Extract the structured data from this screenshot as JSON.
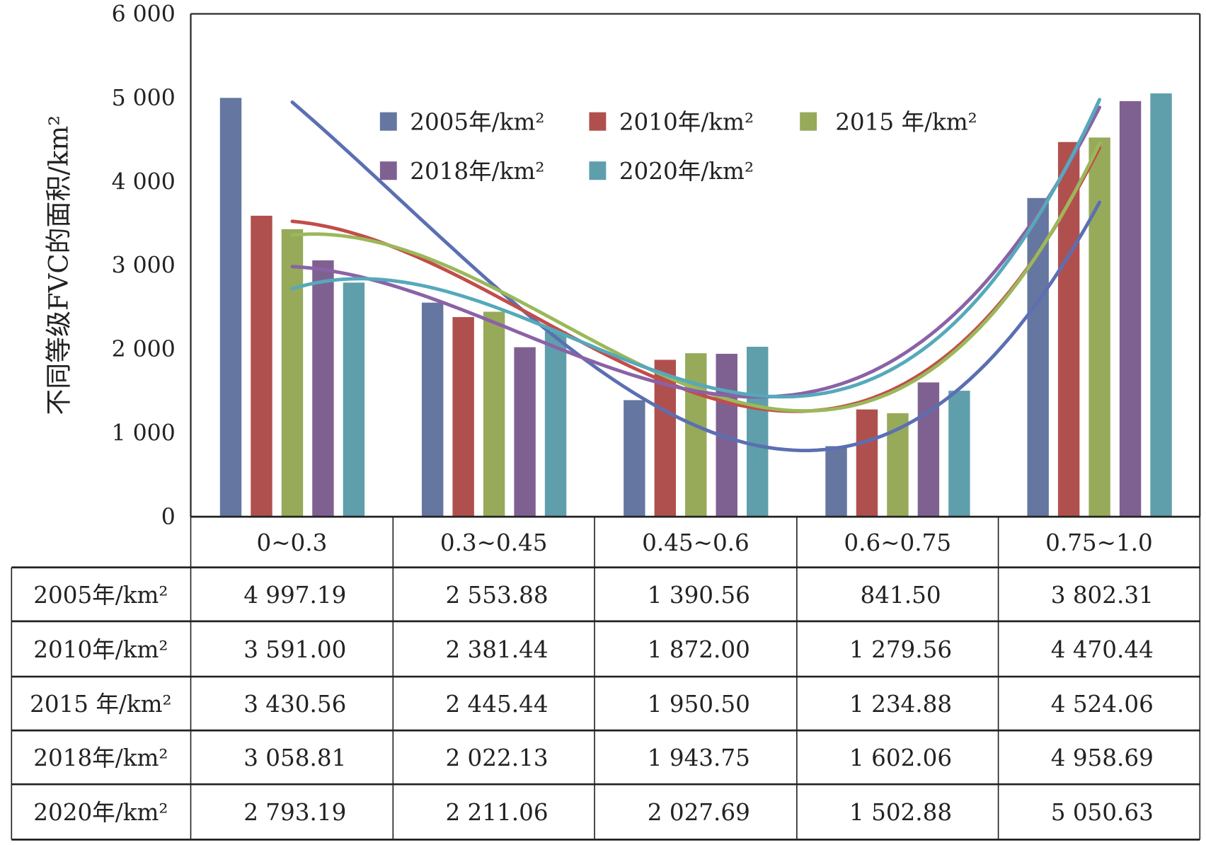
{
  "chart_data": {
    "type": "bar",
    "title": "",
    "xlabel": "",
    "ylabel": "不同等级FVC的面积/km²",
    "ylim": [
      0,
      6000
    ],
    "yticks": [
      "0",
      "1 000",
      "2 000",
      "3 000",
      "4 000",
      "5 000",
      "6 000"
    ],
    "ytick_values": [
      0,
      1000,
      2000,
      3000,
      4000,
      5000,
      6000
    ],
    "categories": [
      "0~0.3",
      "0.3~0.45",
      "0.45~0.6",
      "0.6~0.75",
      "0.75~1.0"
    ],
    "legend_position": "top-center",
    "trendline": "polynomial (order 3) per series",
    "series": [
      {
        "name": "2005年/km²",
        "color": "#6577a0",
        "line_color": "#5b6fb2",
        "values": [
          4997.19,
          2553.88,
          1390.56,
          841.5,
          3802.31
        ],
        "labels": [
          "4 997.19",
          "2 553.88",
          "1 390.56",
          "841.50",
          "3 802.31"
        ]
      },
      {
        "name": "2010年/km²",
        "color": "#b0504e",
        "line_color": "#c24d49",
        "values": [
          3591.0,
          2381.44,
          1872.0,
          1279.56,
          4470.44
        ],
        "labels": [
          "3 591.00",
          "2 381.44",
          "1 872.00",
          "1 279.56",
          "4 470.44"
        ]
      },
      {
        "name": "2015 年/km²",
        "color": "#97aa5a",
        "line_color": "#9bb85a",
        "values": [
          3430.56,
          2445.44,
          1950.5,
          1234.88,
          4524.06
        ],
        "labels": [
          "3 430.56",
          "2 445.44",
          "1 950.50",
          "1 234.88",
          "4 524.06"
        ]
      },
      {
        "name": "2018年/km²",
        "color": "#7f6191",
        "line_color": "#8a62a6",
        "values": [
          3058.81,
          2022.13,
          1943.75,
          1602.06,
          4958.69
        ],
        "labels": [
          "3 058.81",
          "2 022.13",
          "1 943.75",
          "1 602.06",
          "4 958.69"
        ]
      },
      {
        "name": "2020年/km²",
        "color": "#5f9fab",
        "line_color": "#55a9bb",
        "values": [
          2793.19,
          2211.06,
          2027.69,
          1502.88,
          5050.63
        ],
        "labels": [
          "2 793.19",
          "2 211.06",
          "2 027.69",
          "1 502.88",
          "5 050.63"
        ]
      }
    ]
  }
}
